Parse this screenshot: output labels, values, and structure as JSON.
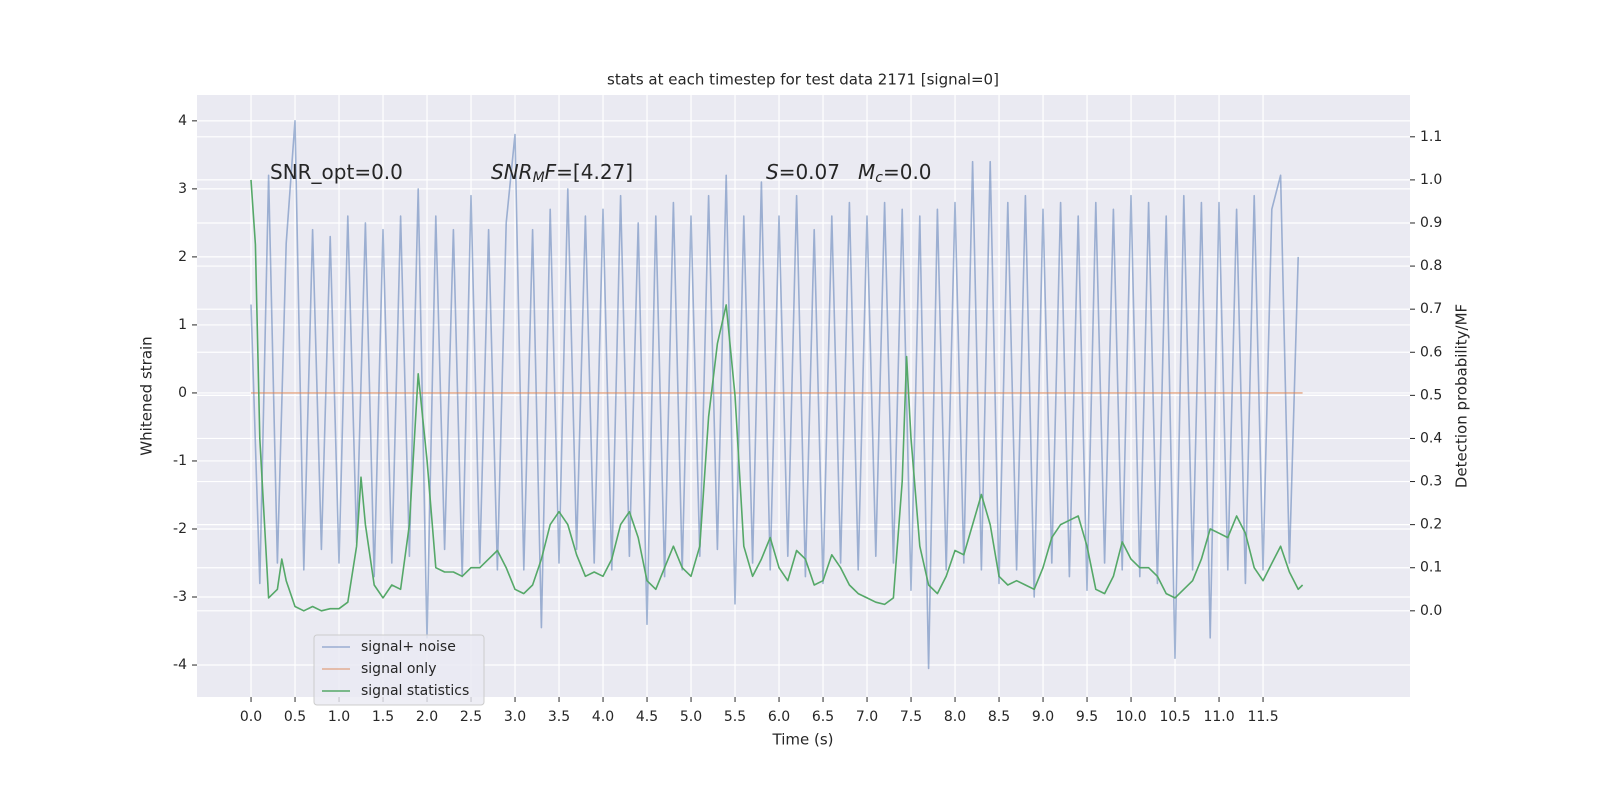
{
  "chart_data": {
    "type": "line",
    "title": "stats at each timestep for test data 2171 [signal=0]",
    "xlabel": "Time (s)",
    "ylabel": "Whitened strain",
    "y2label": "Detection probability/MF",
    "xlim": [
      -0.614,
      13.17
    ],
    "ylim": [
      -4.47,
      4.38
    ],
    "y2lim": [
      -0.2,
      1.197
    ],
    "xticks": [
      {
        "value": 0,
        "label": "0.0"
      },
      0.5,
      {
        "value": 1,
        "label": "1.0"
      },
      1.5,
      {
        "value": 2,
        "label": "2.0"
      },
      2.5,
      {
        "value": 3,
        "label": "3.0"
      },
      3.5,
      {
        "value": 4,
        "label": "4.0"
      },
      4.5,
      {
        "value": 5,
        "label": "5.0"
      },
      5.5,
      {
        "value": 6,
        "label": "6.0"
      },
      6.5,
      {
        "value": 7,
        "label": "7.0"
      },
      7.5,
      {
        "value": 8,
        "label": "8.0"
      },
      8.5,
      {
        "value": 9,
        "label": "9.0"
      },
      9.5,
      {
        "value": 10,
        "label": "10.0"
      },
      10.5,
      {
        "value": 11,
        "label": "11.0"
      },
      11.5
    ],
    "yticks": [
      -4,
      -3,
      -2,
      -1,
      0,
      1,
      2,
      3,
      4
    ],
    "y2ticks": [
      {
        "value": 0,
        "label": "0.0"
      },
      0.1,
      0.2,
      0.3,
      0.4,
      0.5,
      0.6,
      0.7,
      0.8,
      0.9,
      {
        "value": 1,
        "label": "1.0"
      },
      1.1
    ],
    "grid": true,
    "legend": "lower left",
    "annotations": [
      {
        "parts": [
          {
            "text": "SNR_opt=0.0"
          }
        ]
      },
      {
        "parts": [
          {
            "text": "SNR",
            "italic": true
          },
          {
            "text": "M",
            "italic": true,
            "sub": true
          },
          {
            "text": "F",
            "italic": true
          },
          {
            "text": "=[4.27]"
          }
        ]
      },
      {
        "parts": [
          {
            "text": "S",
            "italic": true
          },
          {
            "text": "=0.07"
          }
        ]
      },
      {
        "parts": [
          {
            "text": "M",
            "italic": true
          },
          {
            "text": "c",
            "italic": true,
            "sub": true
          },
          {
            "text": "=0.0"
          }
        ]
      }
    ],
    "series": [
      {
        "name": "signal+ noise",
        "color": "#4c72b0",
        "opacity": 0.5,
        "x": [
          0,
          0.1,
          0.2,
          0.3,
          0.4,
          0.5,
          0.6,
          0.7,
          0.8,
          0.9,
          1,
          1.1,
          1.2,
          1.3,
          1.4,
          1.5,
          1.6,
          1.7,
          1.8,
          1.9,
          2,
          2.1,
          2.2,
          2.3,
          2.4,
          2.5,
          2.6,
          2.7,
          2.8,
          2.9,
          3,
          3.1,
          3.2,
          3.3,
          3.4,
          3.5,
          3.6,
          3.7,
          3.8,
          3.9,
          4,
          4.1,
          4.2,
          4.3,
          4.4,
          4.5,
          4.6,
          4.7,
          4.8,
          4.9,
          5,
          5.1,
          5.2,
          5.3,
          5.4,
          5.5,
          5.6,
          5.7,
          5.8,
          5.9,
          6,
          6.1,
          6.2,
          6.3,
          6.4,
          6.5,
          6.6,
          6.7,
          6.8,
          6.9,
          7,
          7.1,
          7.2,
          7.3,
          7.4,
          7.5,
          7.6,
          7.7,
          7.8,
          7.9,
          8,
          8.1,
          8.2,
          8.3,
          8.4,
          8.5,
          8.6,
          8.7,
          8.8,
          8.9,
          9,
          9.1,
          9.2,
          9.3,
          9.4,
          9.5,
          9.6,
          9.7,
          9.8,
          9.9,
          10,
          10.1,
          10.2,
          10.3,
          10.4,
          10.5,
          10.6,
          10.7,
          10.8,
          10.9,
          11,
          11.1,
          11.2,
          11.3,
          11.4,
          11.5,
          11.6,
          11.7,
          11.8,
          11.9
        ],
        "values": [
          1.3,
          -2.8,
          3.2,
          -2.5,
          2.2,
          4.0,
          -2.6,
          2.4,
          -2.3,
          2.3,
          -2.5,
          2.6,
          -2.2,
          2.5,
          -2.7,
          2.4,
          -2.5,
          2.6,
          -2.4,
          3.0,
          -3.6,
          2.6,
          -2.3,
          2.4,
          -2.7,
          2.9,
          -2.5,
          2.4,
          -2.6,
          2.5,
          3.8,
          -2.6,
          2.4,
          -3.45,
          2.7,
          -2.5,
          3.0,
          -2.3,
          2.6,
          -2.5,
          2.7,
          -2.6,
          2.9,
          -2.4,
          2.5,
          -3.4,
          2.6,
          -2.7,
          2.8,
          -2.6,
          2.6,
          -2.4,
          2.9,
          -2.3,
          3.2,
          -3.1,
          2.6,
          -2.5,
          3.1,
          -2.6,
          2.6,
          -2.4,
          2.9,
          -2.7,
          2.4,
          -2.8,
          2.6,
          -2.5,
          2.8,
          -2.6,
          2.6,
          -2.4,
          2.8,
          -2.5,
          2.7,
          -2.9,
          2.6,
          -4.05,
          2.7,
          -2.6,
          2.8,
          -2.5,
          3.4,
          -2.6,
          3.4,
          -2.8,
          2.8,
          -2.6,
          2.9,
          -3.0,
          2.7,
          -2.5,
          2.8,
          -2.7,
          2.6,
          -2.9,
          2.8,
          -2.5,
          2.7,
          -2.6,
          2.9,
          -2.7,
          2.8,
          -2.8,
          2.6,
          -3.9,
          2.9,
          -2.6,
          2.8,
          -3.6,
          2.8,
          -2.6,
          2.7,
          -2.8,
          2.9,
          -2.6,
          2.7,
          3.2,
          -2.5,
          2.0
        ]
      },
      {
        "name": "signal only",
        "color": "#dd8452",
        "opacity": 0.6,
        "x": [
          0,
          11.95
        ],
        "values": [
          0,
          0
        ]
      },
      {
        "name": "signal statistics",
        "color": "#55a868",
        "opacity": 1,
        "axis": "y2",
        "x": [
          0,
          0.05,
          0.1,
          0.2,
          0.3,
          0.35,
          0.4,
          0.5,
          0.6,
          0.7,
          0.8,
          0.9,
          1,
          1.1,
          1.2,
          1.25,
          1.3,
          1.4,
          1.5,
          1.6,
          1.7,
          1.8,
          1.9,
          2,
          2.1,
          2.2,
          2.3,
          2.4,
          2.5,
          2.6,
          2.7,
          2.8,
          2.9,
          3,
          3.1,
          3.2,
          3.3,
          3.4,
          3.5,
          3.6,
          3.7,
          3.8,
          3.9,
          4,
          4.1,
          4.2,
          4.3,
          4.4,
          4.5,
          4.6,
          4.7,
          4.8,
          4.9,
          5,
          5.1,
          5.2,
          5.3,
          5.4,
          5.5,
          5.6,
          5.7,
          5.8,
          5.9,
          6,
          6.1,
          6.2,
          6.3,
          6.4,
          6.5,
          6.6,
          6.7,
          6.8,
          6.9,
          7,
          7.1,
          7.2,
          7.3,
          7.4,
          7.45,
          7.5,
          7.6,
          7.7,
          7.8,
          7.9,
          8,
          8.1,
          8.2,
          8.3,
          8.4,
          8.5,
          8.6,
          8.7,
          8.8,
          8.9,
          9,
          9.1,
          9.2,
          9.3,
          9.4,
          9.5,
          9.6,
          9.7,
          9.8,
          9.9,
          10,
          10.1,
          10.2,
          10.3,
          10.4,
          10.5,
          10.6,
          10.7,
          10.8,
          10.9,
          11,
          11.1,
          11.2,
          11.3,
          11.4,
          11.5,
          11.6,
          11.7,
          11.8,
          11.9,
          11.95
        ],
        "values": [
          1.0,
          0.85,
          0.4,
          0.03,
          0.05,
          0.12,
          0.07,
          0.01,
          0.0,
          0.01,
          0.0,
          0.005,
          0.005,
          0.02,
          0.15,
          0.31,
          0.2,
          0.06,
          0.03,
          0.06,
          0.05,
          0.2,
          0.55,
          0.35,
          0.1,
          0.09,
          0.09,
          0.08,
          0.1,
          0.1,
          0.12,
          0.14,
          0.1,
          0.05,
          0.04,
          0.06,
          0.12,
          0.2,
          0.23,
          0.2,
          0.13,
          0.08,
          0.09,
          0.08,
          0.12,
          0.2,
          0.23,
          0.17,
          0.07,
          0.05,
          0.1,
          0.15,
          0.1,
          0.08,
          0.15,
          0.45,
          0.62,
          0.71,
          0.5,
          0.15,
          0.08,
          0.12,
          0.17,
          0.1,
          0.07,
          0.14,
          0.12,
          0.06,
          0.07,
          0.13,
          0.1,
          0.06,
          0.04,
          0.03,
          0.02,
          0.015,
          0.03,
          0.3,
          0.59,
          0.4,
          0.15,
          0.06,
          0.04,
          0.08,
          0.14,
          0.13,
          0.2,
          0.27,
          0.2,
          0.08,
          0.06,
          0.07,
          0.06,
          0.05,
          0.1,
          0.17,
          0.2,
          0.21,
          0.22,
          0.15,
          0.05,
          0.04,
          0.08,
          0.16,
          0.12,
          0.1,
          0.1,
          0.08,
          0.04,
          0.03,
          0.05,
          0.07,
          0.12,
          0.19,
          0.18,
          0.17,
          0.22,
          0.18,
          0.1,
          0.07,
          0.11,
          0.15,
          0.09,
          0.05,
          0.06
        ]
      }
    ]
  }
}
